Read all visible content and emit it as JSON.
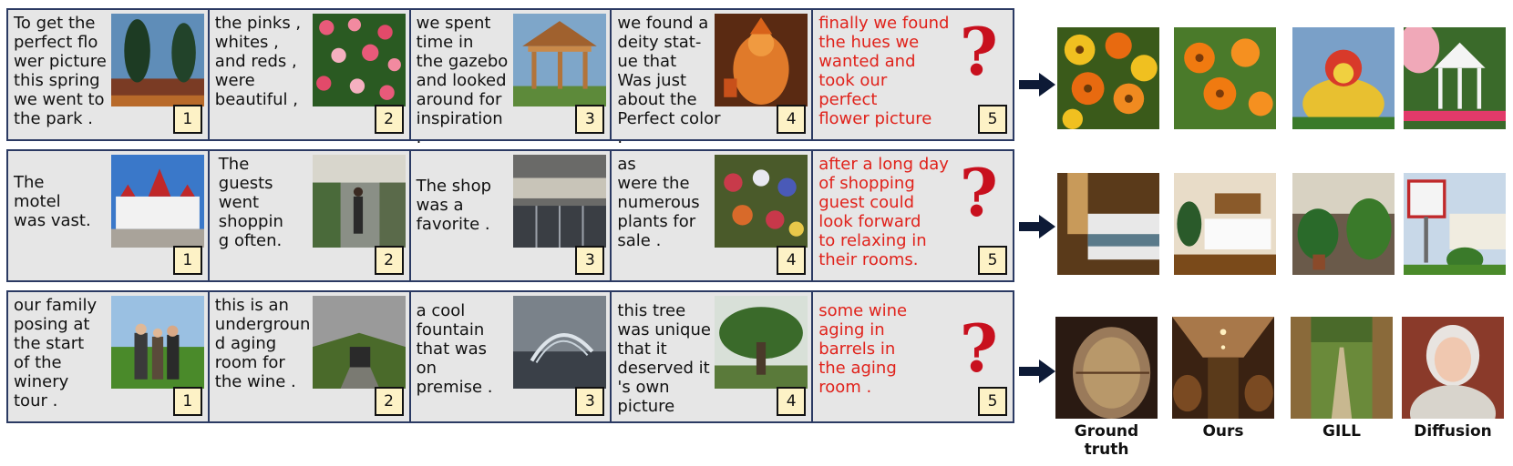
{
  "rows": [
    {
      "panels": [
        {
          "text": "To get the\nperfect flo\nwer picture\nthis spring\nwe went to\nthe park .",
          "badge": "1",
          "image": "pine-trees-park-photo"
        },
        {
          "text": "the pinks ,\nwhites ,\nand reds ,\nwere\nbeautiful ,",
          "badge": "2",
          "image": "flower-bush-photo"
        },
        {
          "text": "we spent\ntime in\nthe gazebo\nand looked\naround for\ninspiration\n.",
          "badge": "3",
          "image": "gazebo-photo"
        },
        {
          "text": "we found a\ndeity stat-\nue that\nWas just\nabout the\nPerfect color\n.",
          "badge": "4",
          "image": "deity-statue-photo"
        }
      ],
      "target": {
        "text": "finally we found\nthe  hues we\nwanted and\ntook our\nperfect\nflower picture",
        "badge": "5",
        "question": "?"
      },
      "results": [
        "orange-yellow-flowers",
        "orange-flowers",
        "decorated-statue",
        "white-gazebo"
      ]
    },
    {
      "panels": [
        {
          "text": "The\nmotel\nwas vast.",
          "badge": "1",
          "image": "hotel-building-photo"
        },
        {
          "text": "The\nguests\nwent\nshoppin\ng often.",
          "badge": "2",
          "image": "shopping-street-photo"
        },
        {
          "text": "The shop\nwas a\nfavorite .",
          "badge": "3",
          "image": "shop-front-photo"
        },
        {
          "text": "as\nwere the\nnumerous\nplants for\nsale .",
          "badge": "4",
          "image": "plant-market-photo"
        }
      ],
      "target": {
        "text": "after a long day\nof shopping\nguest could\nlook forward\nto relaxing in\ntheir rooms.",
        "badge": "5",
        "question": "?"
      },
      "results": [
        "hotel-room-bed",
        "bright-hotel-room",
        "plants-courtyard",
        "motel-sign"
      ]
    },
    {
      "panels": [
        {
          "text": "our family\nposing at\nthe start\nof the\nwinery\ntour .",
          "badge": "1",
          "image": "family-winery-photo"
        },
        {
          "text": "this is an\nundergroun\nd aging\nroom for\nthe wine .",
          "badge": "2",
          "image": "underground-room-photo"
        },
        {
          "text": "a cool\nfountain\nthat was\non\npremise .",
          "badge": "3",
          "image": "fountain-photo"
        },
        {
          "text": "this tree\nwas unique\nthat it\ndeserved it\n's own\npicture",
          "badge": "4",
          "image": "unique-tree-photo"
        }
      ],
      "target": {
        "text": "some wine\naging in\nbarrels in\nthe aging\nroom .",
        "badge": "5",
        "question": "?"
      },
      "results": [
        "wine-barrel-closeup",
        "barrel-cellar",
        "tree-lined-path",
        "elderly-woman-portrait"
      ]
    }
  ],
  "column_labels": [
    "Ground\ntruth",
    "Ours",
    "GILL",
    "Diffusion"
  ],
  "colors": {
    "border": "#2b3a63",
    "panel_bg": "#e6e6e6",
    "red_text": "#e0221b",
    "badge_bg": "#fdf2c6",
    "question": "#c8101e"
  }
}
